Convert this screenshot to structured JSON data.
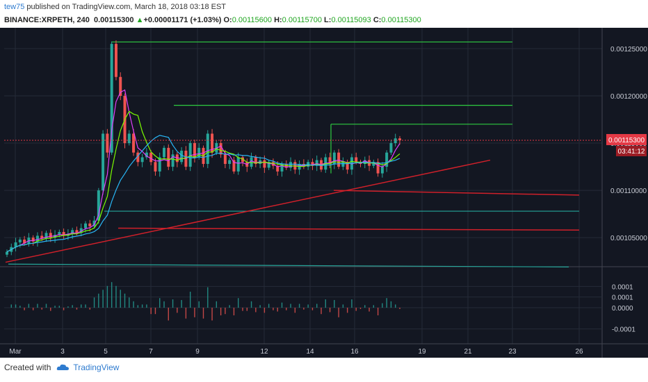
{
  "header": {
    "user": "tew75",
    "published_text": "published on TradingView.com, March 18, 2018 03:18 EST",
    "symbol": "BINANCE:XRPETH, 240",
    "last": "0.00115300",
    "change": "+0.00001171 (+1.03%)",
    "o_label": "O:",
    "o": "0.00115600",
    "h_label": "H:",
    "h": "0.00115700",
    "l_label": "L:",
    "l": "0.00115093",
    "c_label": "C:",
    "c": "0.00115300",
    "up_arrow_icon": "triangle-up-icon"
  },
  "footer": {
    "created_with": "Created with",
    "brand": "TradingView",
    "brand_icon": "tradingview-cloud-icon"
  },
  "colors": {
    "background": "#131722",
    "grid": "#262b38",
    "axis_text": "#c9ccd5",
    "up": "#26a69a",
    "down": "#ef5350",
    "green_line": "#2ecc40",
    "red_line": "#d0202a",
    "teal_line": "#26a69a",
    "price_tag": "#e53945"
  },
  "chart_data": [
    {
      "type": "line",
      "title": "",
      "price_axis": [
        "0.00125000",
        "0.00120000",
        "0.00115000",
        "0.00110000",
        "0.00105000"
      ],
      "current_price_tag": "0.00115300",
      "countdown_tag": "03:41:12",
      "x_ticks": [
        "Mar",
        "3",
        "5",
        "7",
        "9",
        "12",
        "14",
        "16",
        "19",
        "21",
        "23",
        "26"
      ],
      "ylim": [
        0.00102,
        0.001272
      ],
      "grid": true,
      "candles_close": [
        0.001035,
        0.00104,
        0.001045,
        0.001048,
        0.001044,
        0.00105,
        0.001046,
        0.001052,
        0.001049,
        0.001055,
        0.00105,
        0.001053,
        0.001056,
        0.001052,
        0.001054,
        0.001058,
        0.001055,
        0.00106,
        0.001065,
        0.001062,
        0.001068,
        0.0011,
        0.00116,
        0.00114,
        0.001255,
        0.00122,
        0.0012,
        0.00115,
        0.00116,
        0.00114,
        0.00113,
        0.001135,
        0.00114,
        0.00113,
        0.00112,
        0.001135,
        0.001145,
        0.001125,
        0.001138,
        0.00113,
        0.001142,
        0.001125,
        0.00115,
        0.001135,
        0.001145,
        0.001128,
        0.00116,
        0.00114,
        0.00115,
        0.001138,
        0.001128,
        0.001132,
        0.00112,
        0.001135,
        0.00113,
        0.001125,
        0.001135,
        0.001128,
        0.001132,
        0.001124,
        0.00113,
        0.001126,
        0.00112,
        0.001128,
        0.001124,
        0.00113,
        0.001122,
        0.001128,
        0.001125,
        0.00113,
        0.001126,
        0.001132,
        0.001122,
        0.001135,
        0.001128,
        0.00114,
        0.001125,
        0.00113,
        0.001122,
        0.001135,
        0.00113,
        0.001128,
        0.001132,
        0.001126,
        0.00113,
        0.001118,
        0.001125,
        0.00114,
        0.00115,
        0.001155,
        0.001153
      ],
      "resistance_levels": [
        0.001257,
        0.00119,
        0.00117
      ],
      "support_levels": [
        0.001078,
        0.00106,
        0.001022
      ],
      "oscillator_axis": [
        "0.0001",
        "0.0001",
        "0.0000",
        "-0.0001"
      ]
    }
  ]
}
